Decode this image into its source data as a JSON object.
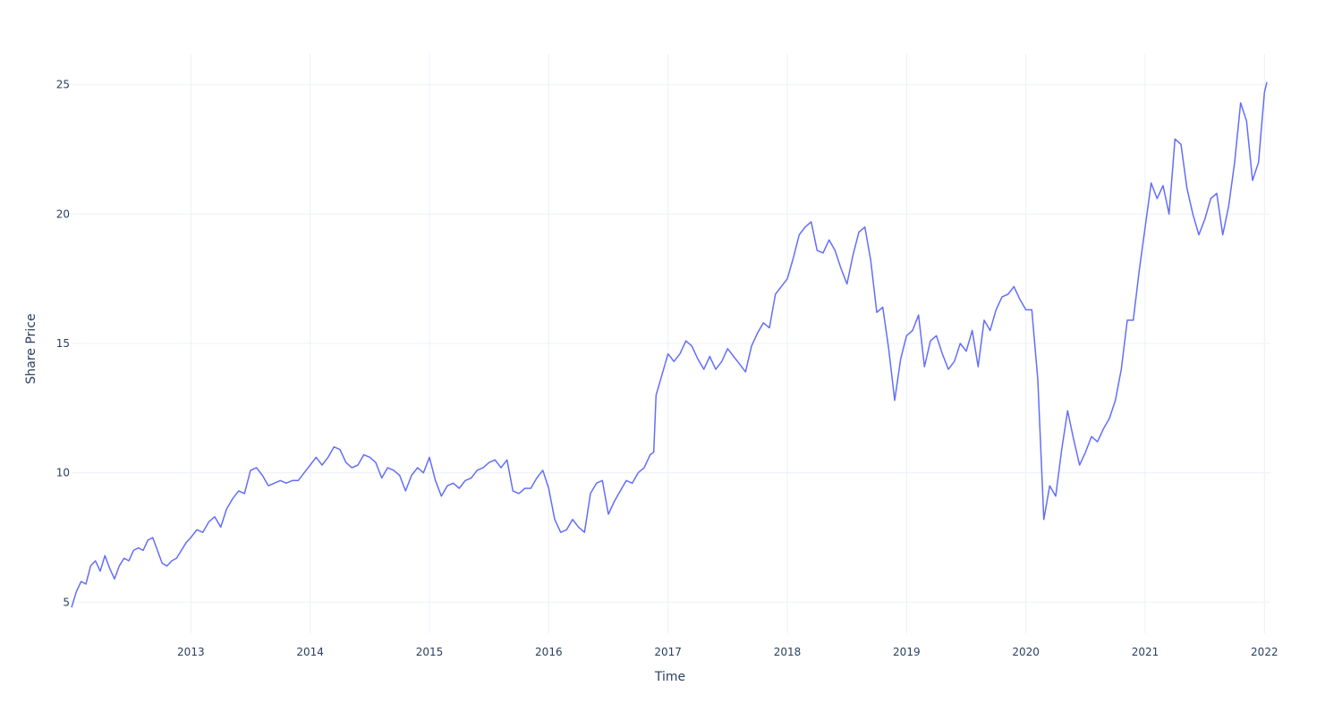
{
  "chart_data": {
    "type": "line",
    "title": "",
    "xlabel": "Time",
    "ylabel": "Share Price",
    "xlim": [
      2012.0,
      2022.05
    ],
    "ylim": [
      3.8,
      26.2
    ],
    "grid": true,
    "legend": "none",
    "x_ticks": [
      {
        "value": 2013,
        "label": "2013"
      },
      {
        "value": 2014,
        "label": "2014"
      },
      {
        "value": 2015,
        "label": "2015"
      },
      {
        "value": 2016,
        "label": "2016"
      },
      {
        "value": 2017,
        "label": "2017"
      },
      {
        "value": 2018,
        "label": "2018"
      },
      {
        "value": 2019,
        "label": "2019"
      },
      {
        "value": 2020,
        "label": "2020"
      },
      {
        "value": 2021,
        "label": "2021"
      },
      {
        "value": 2022,
        "label": "2022"
      }
    ],
    "y_ticks": [
      {
        "value": 5,
        "label": "5"
      },
      {
        "value": 10,
        "label": "10"
      },
      {
        "value": 15,
        "label": "15"
      },
      {
        "value": 20,
        "label": "20"
      },
      {
        "value": 25,
        "label": "25"
      }
    ],
    "colors": {
      "series": "#636efa",
      "grid": "#ebf0f8",
      "text": "#2a3f5f"
    },
    "series": [
      {
        "x": [
          2012.0,
          2012.04,
          2012.08,
          2012.12,
          2012.16,
          2012.2,
          2012.24,
          2012.28,
          2012.32,
          2012.36,
          2012.4,
          2012.44,
          2012.48,
          2012.52,
          2012.56,
          2012.6,
          2012.64,
          2012.68,
          2012.72,
          2012.76,
          2012.8,
          2012.84,
          2012.88,
          2012.92,
          2012.96,
          2013.0,
          2013.05,
          2013.1,
          2013.15,
          2013.2,
          2013.25,
          2013.3,
          2013.35,
          2013.4,
          2013.45,
          2013.5,
          2013.55,
          2013.6,
          2013.65,
          2013.7,
          2013.75,
          2013.8,
          2013.85,
          2013.9,
          2013.95,
          2014.0,
          2014.05,
          2014.1,
          2014.15,
          2014.2,
          2014.25,
          2014.3,
          2014.35,
          2014.4,
          2014.45,
          2014.5,
          2014.55,
          2014.6,
          2014.65,
          2014.7,
          2014.75,
          2014.8,
          2014.85,
          2014.9,
          2014.95,
          2015.0,
          2015.05,
          2015.1,
          2015.15,
          2015.2,
          2015.25,
          2015.3,
          2015.35,
          2015.4,
          2015.45,
          2015.5,
          2015.55,
          2015.6,
          2015.65,
          2015.7,
          2015.75,
          2015.8,
          2015.85,
          2015.9,
          2015.95,
          2016.0,
          2016.05,
          2016.1,
          2016.15,
          2016.2,
          2016.25,
          2016.3,
          2016.35,
          2016.4,
          2016.45,
          2016.5,
          2016.55,
          2016.6,
          2016.65,
          2016.7,
          2016.75,
          2016.8,
          2016.85,
          2016.88,
          2016.9,
          2016.95,
          2017.0,
          2017.05,
          2017.1,
          2017.15,
          2017.2,
          2017.25,
          2017.3,
          2017.35,
          2017.4,
          2017.45,
          2017.5,
          2017.55,
          2017.6,
          2017.65,
          2017.7,
          2017.75,
          2017.8,
          2017.85,
          2017.9,
          2017.95,
          2018.0,
          2018.05,
          2018.1,
          2018.15,
          2018.2,
          2018.25,
          2018.3,
          2018.35,
          2018.4,
          2018.45,
          2018.5,
          2018.55,
          2018.6,
          2018.65,
          2018.7,
          2018.75,
          2018.8,
          2018.85,
          2018.9,
          2018.95,
          2019.0,
          2019.05,
          2019.1,
          2019.15,
          2019.2,
          2019.25,
          2019.3,
          2019.35,
          2019.4,
          2019.45,
          2019.5,
          2019.55,
          2019.6,
          2019.65,
          2019.7,
          2019.75,
          2019.8,
          2019.85,
          2019.9,
          2019.95,
          2020.0,
          2020.05,
          2020.1,
          2020.15,
          2020.2,
          2020.25,
          2020.3,
          2020.35,
          2020.4,
          2020.45,
          2020.5,
          2020.55,
          2020.6,
          2020.65,
          2020.7,
          2020.75,
          2020.8,
          2020.85,
          2020.9,
          2020.95,
          2021.0,
          2021.05,
          2021.1,
          2021.15,
          2021.2,
          2021.25,
          2021.3,
          2021.35,
          2021.4,
          2021.45,
          2021.5,
          2021.55,
          2021.6,
          2021.65,
          2021.7,
          2021.75,
          2021.8,
          2021.85,
          2021.9,
          2021.95,
          2022.0,
          2022.02
        ],
        "y": [
          4.8,
          5.4,
          5.8,
          5.7,
          6.4,
          6.6,
          6.2,
          6.8,
          6.3,
          5.9,
          6.4,
          6.7,
          6.6,
          7.0,
          7.1,
          7.0,
          7.4,
          7.5,
          7.0,
          6.5,
          6.4,
          6.6,
          6.7,
          7.0,
          7.3,
          7.5,
          7.8,
          7.7,
          8.1,
          8.3,
          7.9,
          8.6,
          9.0,
          9.3,
          9.2,
          10.1,
          10.2,
          9.9,
          9.5,
          9.6,
          9.7,
          9.6,
          9.7,
          9.7,
          10.0,
          10.3,
          10.6,
          10.3,
          10.6,
          11.0,
          10.9,
          10.4,
          10.2,
          10.3,
          10.7,
          10.6,
          10.4,
          9.8,
          10.2,
          10.1,
          9.9,
          9.3,
          9.9,
          10.2,
          10.0,
          10.6,
          9.7,
          9.1,
          9.5,
          9.6,
          9.4,
          9.7,
          9.8,
          10.1,
          10.2,
          10.4,
          10.5,
          10.2,
          10.5,
          9.3,
          9.2,
          9.4,
          9.4,
          9.8,
          10.1,
          9.4,
          8.2,
          7.7,
          7.8,
          8.2,
          7.9,
          7.7,
          9.2,
          9.6,
          9.7,
          8.4,
          8.9,
          9.3,
          9.7,
          9.6,
          10.0,
          10.2,
          10.7,
          10.8,
          13.0,
          13.8,
          14.6,
          14.3,
          14.6,
          15.1,
          14.9,
          14.4,
          14.0,
          14.5,
          14.0,
          14.3,
          14.8,
          14.5,
          14.2,
          13.9,
          14.9,
          15.4,
          15.8,
          15.6,
          16.9,
          17.2,
          17.5,
          18.3,
          19.2,
          19.5,
          19.7,
          18.6,
          18.5,
          19.0,
          18.6,
          17.9,
          17.3,
          18.4,
          19.3,
          19.5,
          18.2,
          16.2,
          16.4,
          14.8,
          12.8,
          14.4,
          15.3,
          15.5,
          16.1,
          14.1,
          15.1,
          15.3,
          14.6,
          14.0,
          14.3,
          15.0,
          14.7,
          15.5,
          14.1,
          15.9,
          15.5,
          16.3,
          16.8,
          16.9,
          17.2,
          16.7,
          16.3,
          16.3,
          13.6,
          8.2,
          9.5,
          9.1,
          10.9,
          12.4,
          11.3,
          10.3,
          10.8,
          11.4,
          11.2,
          11.7,
          12.1,
          12.8,
          14.0,
          15.9,
          15.9,
          17.8,
          19.5,
          21.2,
          20.6,
          21.1,
          20.0,
          22.9,
          22.7,
          21.0,
          20.0,
          19.2,
          19.8,
          20.6,
          20.8,
          19.2,
          20.3,
          22.0,
          24.3,
          23.6,
          21.3,
          22.0,
          24.7,
          25.1
        ]
      }
    ]
  }
}
